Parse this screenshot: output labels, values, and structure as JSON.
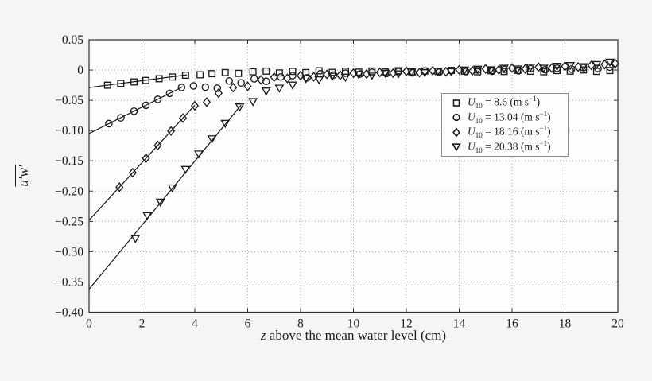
{
  "figure": {
    "background": "#f5f5f3",
    "plot_background": "#fdfdfd",
    "axis_color": "#2e2e2e",
    "grid_color": "#ababab",
    "marker_color": "#1c1c1c",
    "tick_label_color": "#1c1c1c"
  },
  "chart_data": {
    "type": "scatter",
    "title": "",
    "xlabel": {
      "italic": "z",
      "rest": " above the mean water level (cm)"
    },
    "ylabel": {
      "text": "u′w′",
      "overline": true
    },
    "xlim": [
      0,
      20
    ],
    "ylim": [
      -0.4,
      0.05
    ],
    "grid": "dotted",
    "legend_position": "inside-upper-right",
    "x_ticks": {
      "values": [
        0,
        2,
        4,
        6,
        8,
        10,
        12,
        14,
        16,
        18,
        20
      ],
      "labels": [
        "0",
        "2",
        "4",
        "6",
        "8",
        "10",
        "12",
        "14",
        "16",
        "18",
        "20"
      ]
    },
    "y_ticks": {
      "values": [
        0.05,
        0,
        -0.05,
        -0.1,
        -0.15,
        -0.2,
        -0.25,
        -0.3,
        -0.35,
        -0.4
      ],
      "labels": [
        "0.05",
        "0",
        "−0.05",
        "−0.10",
        "−0.15",
        "−0.20",
        "−0.25",
        "−0.30",
        "−0.35",
        "−0.40"
      ]
    },
    "series": [
      {
        "marker": "square",
        "u10": 8.6,
        "legend": {
          "var": "U",
          "sub": "10",
          "mid": " = 8.6 (m s",
          "sup": "−1",
          "end": ")"
        },
        "fit_line": {
          "x": [
            0,
            3.7
          ],
          "y": [
            -0.029,
            -0.008
          ]
        },
        "points": [
          [
            0.7,
            -0.025
          ],
          [
            1.2,
            -0.0222
          ],
          [
            1.7,
            -0.0196
          ],
          [
            2.15,
            -0.0172
          ],
          [
            2.65,
            -0.0143
          ],
          [
            3.15,
            -0.0115
          ],
          [
            3.65,
            -0.0085
          ],
          [
            4.2,
            -0.0078
          ],
          [
            4.65,
            -0.006
          ],
          [
            5.15,
            -0.0042
          ],
          [
            5.65,
            -0.0055
          ],
          [
            6.2,
            -0.0028
          ],
          [
            6.7,
            -0.0018
          ],
          [
            7.2,
            -0.0048
          ],
          [
            7.7,
            -0.0022
          ],
          [
            8.2,
            -0.0042
          ],
          [
            8.7,
            -0.0012
          ],
          [
            9.2,
            -0.0038
          ],
          [
            9.7,
            -0.002
          ],
          [
            10.2,
            -0.0034
          ],
          [
            10.7,
            -0.0016
          ],
          [
            11.2,
            -0.003
          ],
          [
            11.7,
            -0.0012
          ],
          [
            12.2,
            -0.0028
          ],
          [
            12.7,
            -0.0016
          ],
          [
            13.2,
            -0.0024
          ],
          [
            13.7,
            -0.0006
          ],
          [
            14.2,
            -0.002
          ],
          [
            14.7,
            -0.0028
          ],
          [
            15.2,
            -0.001
          ],
          [
            15.7,
            -0.0024
          ],
          [
            16.2,
            -0.0006
          ],
          [
            16.7,
            -0.002
          ],
          [
            17.2,
            -0.0028
          ],
          [
            17.7,
            -0.0008
          ],
          [
            18.2,
            -0.0018
          ],
          [
            18.7,
            0.0002
          ],
          [
            19.2,
            -0.0022
          ],
          [
            19.7,
            -0.0008
          ]
        ]
      },
      {
        "marker": "circle",
        "u10": 13.04,
        "legend": {
          "var": "U",
          "sub": "10",
          "mid": " = 13.04 (m s",
          "sup": "−1",
          "end": ")"
        },
        "fit_line": {
          "x": [
            0,
            3.55
          ],
          "y": [
            -0.105,
            -0.0275
          ]
        },
        "points": [
          [
            0.75,
            -0.0885
          ],
          [
            1.2,
            -0.079
          ],
          [
            1.7,
            -0.068
          ],
          [
            2.15,
            -0.0582
          ],
          [
            2.6,
            -0.0484
          ],
          [
            3.05,
            -0.0385
          ],
          [
            3.5,
            -0.0287
          ],
          [
            3.95,
            -0.0262
          ],
          [
            4.4,
            -0.0282
          ],
          [
            4.85,
            -0.03
          ],
          [
            5.3,
            -0.018
          ],
          [
            5.75,
            -0.0212
          ],
          [
            6.25,
            -0.0145
          ],
          [
            6.7,
            -0.0186
          ],
          [
            7.25,
            -0.0115
          ],
          [
            7.7,
            -0.0092
          ],
          [
            8.25,
            -0.0128
          ],
          [
            8.75,
            -0.0062
          ],
          [
            9.25,
            -0.0082
          ],
          [
            9.7,
            -0.0052
          ],
          [
            10.25,
            -0.0066
          ],
          [
            10.7,
            -0.0038
          ],
          [
            11.25,
            -0.0056
          ],
          [
            11.7,
            -0.0026
          ],
          [
            12.25,
            -0.0046
          ],
          [
            12.7,
            -0.0016
          ],
          [
            13.25,
            -0.0036
          ],
          [
            13.7,
            -0.001
          ],
          [
            14.25,
            -0.0026
          ],
          [
            14.7,
            0.0
          ],
          [
            15.25,
            -0.002
          ],
          [
            15.7,
            0.001
          ],
          [
            16.25,
            -0.0012
          ],
          [
            16.7,
            0.0022
          ],
          [
            17.25,
            0.0006
          ],
          [
            17.7,
            0.003
          ],
          [
            18.25,
            0.0016
          ],
          [
            18.7,
            0.004
          ],
          [
            19.25,
            0.0026
          ],
          [
            19.7,
            0.0048
          ]
        ]
      },
      {
        "marker": "diamond",
        "u10": 18.16,
        "legend": {
          "var": "U",
          "sub": "10",
          "mid": " = 18.16 (m s",
          "sup": "−1",
          "end": ")"
        },
        "fit_line": {
          "x": [
            0,
            4.0
          ],
          "y": [
            -0.248,
            -0.058
          ]
        },
        "points": [
          [
            1.15,
            -0.1934
          ],
          [
            1.65,
            -0.1696
          ],
          [
            2.15,
            -0.1459
          ],
          [
            2.6,
            -0.1245
          ],
          [
            3.1,
            -0.1008
          ],
          [
            3.55,
            -0.0794
          ],
          [
            4.0,
            -0.059
          ],
          [
            4.45,
            -0.053
          ],
          [
            4.9,
            -0.0382
          ],
          [
            5.45,
            -0.029
          ],
          [
            6.0,
            -0.0268
          ],
          [
            6.5,
            -0.0162
          ],
          [
            7.0,
            -0.0118
          ],
          [
            7.5,
            -0.0138
          ],
          [
            8.0,
            -0.0092
          ],
          [
            8.5,
            -0.0112
          ],
          [
            9.0,
            -0.0072
          ],
          [
            9.5,
            -0.0086
          ],
          [
            10.0,
            -0.0052
          ],
          [
            10.5,
            -0.0066
          ],
          [
            11.0,
            -0.0038
          ],
          [
            11.5,
            -0.0052
          ],
          [
            12.0,
            -0.0022
          ],
          [
            12.5,
            -0.0042
          ],
          [
            13.0,
            -0.0012
          ],
          [
            13.5,
            -0.0028
          ],
          [
            14.0,
            0.0004
          ],
          [
            14.5,
            -0.0012
          ],
          [
            15.0,
            0.0018
          ],
          [
            15.5,
            0.0004
          ],
          [
            16.0,
            0.0032
          ],
          [
            16.5,
            0.0018
          ],
          [
            17.0,
            0.0048
          ],
          [
            17.5,
            0.0034
          ],
          [
            18.0,
            0.0062
          ],
          [
            18.5,
            0.005
          ],
          [
            19.0,
            0.0078
          ],
          [
            19.5,
            0.0092
          ],
          [
            19.9,
            0.0108
          ]
        ]
      },
      {
        "marker": "triangle-down",
        "u10": 20.38,
        "legend": {
          "var": "U",
          "sub": "10",
          "mid": " = 20.38 (m s",
          "sup": "−1",
          "end": ")"
        },
        "fit_line": {
          "x": [
            0,
            5.75
          ],
          "y": [
            -0.362,
            -0.058
          ]
        },
        "points": [
          [
            1.75,
            -0.2782
          ],
          [
            2.2,
            -0.2402
          ],
          [
            2.7,
            -0.218
          ],
          [
            3.15,
            -0.1945
          ],
          [
            3.65,
            -0.164
          ],
          [
            4.15,
            -0.1385
          ],
          [
            4.65,
            -0.1135
          ],
          [
            5.15,
            -0.088
          ],
          [
            5.7,
            -0.0607
          ],
          [
            6.2,
            -0.052
          ],
          [
            6.7,
            -0.0345
          ],
          [
            7.2,
            -0.0298
          ],
          [
            7.7,
            -0.0246
          ],
          [
            8.2,
            -0.0142
          ],
          [
            8.7,
            -0.016
          ],
          [
            9.2,
            -0.0102
          ],
          [
            9.7,
            -0.0118
          ],
          [
            10.2,
            -0.0072
          ],
          [
            10.7,
            -0.0086
          ],
          [
            11.2,
            -0.0052
          ],
          [
            11.7,
            -0.0062
          ],
          [
            12.2,
            -0.0032
          ],
          [
            12.7,
            -0.0042
          ],
          [
            13.2,
            -0.0016
          ],
          [
            13.7,
            -0.0026
          ],
          [
            14.2,
            0.0002
          ],
          [
            14.7,
            0.0016
          ],
          [
            15.2,
            0.0006
          ],
          [
            15.7,
            0.0032
          ],
          [
            16.2,
            0.0018
          ],
          [
            16.7,
            0.0046
          ],
          [
            17.2,
            0.0032
          ],
          [
            17.7,
            0.0062
          ],
          [
            18.2,
            0.0076
          ],
          [
            18.7,
            0.0056
          ],
          [
            19.2,
            0.0092
          ],
          [
            19.7,
            0.0132
          ]
        ]
      }
    ]
  }
}
